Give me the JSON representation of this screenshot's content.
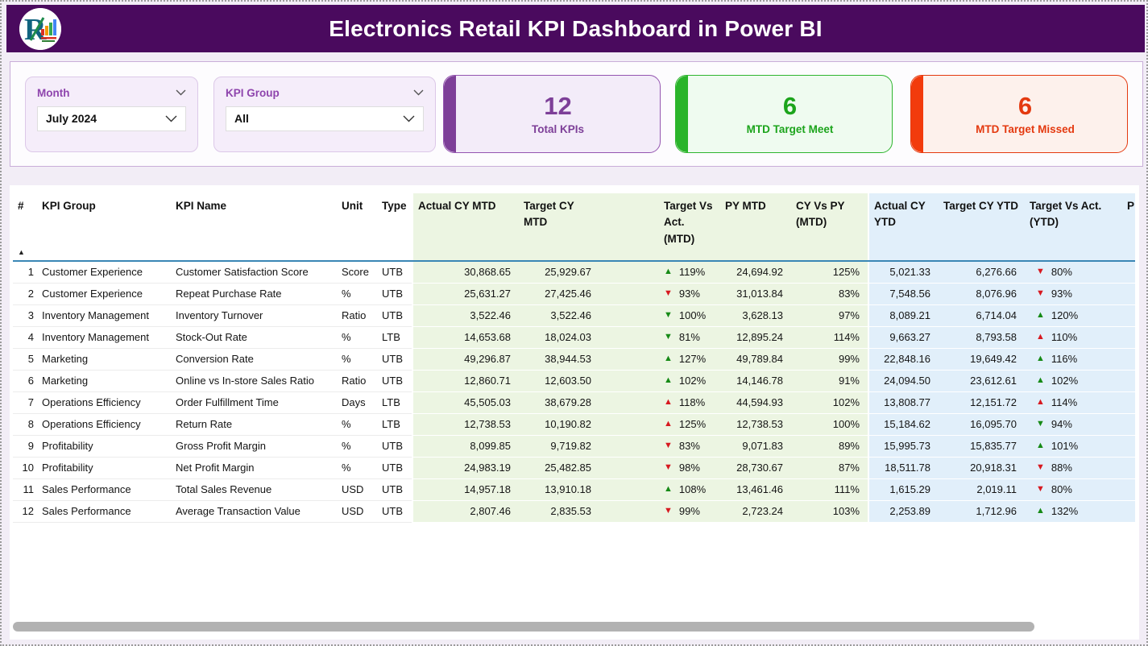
{
  "header": {
    "title": "Electronics Retail KPI Dashboard in Power BI"
  },
  "filters": {
    "month": {
      "label": "Month",
      "value": "July 2024"
    },
    "kpi_group": {
      "label": "KPI Group",
      "value": "All"
    }
  },
  "cards": {
    "total": {
      "value": "12",
      "label": "Total KPIs",
      "color": "#7d3f98"
    },
    "meet": {
      "value": "6",
      "label": "MTD Target Meet",
      "color": "#1ca41c"
    },
    "missed": {
      "value": "6",
      "label": "MTD Target Missed",
      "color": "#e4390f"
    }
  },
  "table": {
    "columns": {
      "num": "#",
      "group": "KPI Group",
      "name": "KPI Name",
      "unit": "Unit",
      "type": "Type",
      "actual_mtd": "Actual CY MTD",
      "target_mtd": "Target CY MTD",
      "tva_mtd": "Target Vs Act. (MTD)",
      "py_mtd": "PY MTD",
      "cyvspy_mtd": "CY Vs PY (MTD)",
      "actual_ytd": "Actual CY YTD",
      "target_ytd": "Target CY YTD",
      "tva_ytd": "Target Vs Act. (YTD)",
      "partial": "P"
    },
    "section_colors": {
      "mtd": "#ecf5e2",
      "ytd": "#e1effa",
      "header_underline": "#3a87b5"
    },
    "arrow_colors": {
      "green": "#168a16",
      "red": "#d71920"
    },
    "rows": [
      {
        "num": "1",
        "group": "Customer Experience",
        "name": "Customer Satisfaction Score",
        "unit": "Score",
        "type": "UTB",
        "actual_mtd": "30,868.65",
        "target_mtd": "25,929.67",
        "tva_mtd": {
          "dir": "up",
          "color": "green",
          "value": "119%"
        },
        "py_mtd": "24,694.92",
        "cyvspy_mtd": "125%",
        "actual_ytd": "5,021.33",
        "target_ytd": "6,276.66",
        "tva_ytd": {
          "dir": "down",
          "color": "red",
          "value": "80%"
        }
      },
      {
        "num": "2",
        "group": "Customer Experience",
        "name": "Repeat Purchase Rate",
        "unit": "%",
        "type": "UTB",
        "actual_mtd": "25,631.27",
        "target_mtd": "27,425.46",
        "tva_mtd": {
          "dir": "down",
          "color": "red",
          "value": "93%"
        },
        "py_mtd": "31,013.84",
        "cyvspy_mtd": "83%",
        "actual_ytd": "7,548.56",
        "target_ytd": "8,076.96",
        "tva_ytd": {
          "dir": "down",
          "color": "red",
          "value": "93%"
        }
      },
      {
        "num": "3",
        "group": "Inventory Management",
        "name": "Inventory Turnover",
        "unit": "Ratio",
        "type": "UTB",
        "actual_mtd": "3,522.46",
        "target_mtd": "3,522.46",
        "tva_mtd": {
          "dir": "down",
          "color": "green",
          "value": "100%"
        },
        "py_mtd": "3,628.13",
        "cyvspy_mtd": "97%",
        "actual_ytd": "8,089.21",
        "target_ytd": "6,714.04",
        "tva_ytd": {
          "dir": "up",
          "color": "green",
          "value": "120%"
        }
      },
      {
        "num": "4",
        "group": "Inventory Management",
        "name": "Stock-Out Rate",
        "unit": "%",
        "type": "LTB",
        "actual_mtd": "14,653.68",
        "target_mtd": "18,024.03",
        "tva_mtd": {
          "dir": "down",
          "color": "green",
          "value": "81%"
        },
        "py_mtd": "12,895.24",
        "cyvspy_mtd": "114%",
        "actual_ytd": "9,663.27",
        "target_ytd": "8,793.58",
        "tva_ytd": {
          "dir": "up",
          "color": "red",
          "value": "110%"
        }
      },
      {
        "num": "5",
        "group": "Marketing",
        "name": "Conversion Rate",
        "unit": "%",
        "type": "UTB",
        "actual_mtd": "49,296.87",
        "target_mtd": "38,944.53",
        "tva_mtd": {
          "dir": "up",
          "color": "green",
          "value": "127%"
        },
        "py_mtd": "49,789.84",
        "cyvspy_mtd": "99%",
        "actual_ytd": "22,848.16",
        "target_ytd": "19,649.42",
        "tva_ytd": {
          "dir": "up",
          "color": "green",
          "value": "116%"
        }
      },
      {
        "num": "6",
        "group": "Marketing",
        "name": "Online vs In-store Sales Ratio",
        "unit": "Ratio",
        "type": "UTB",
        "actual_mtd": "12,860.71",
        "target_mtd": "12,603.50",
        "tva_mtd": {
          "dir": "up",
          "color": "green",
          "value": "102%"
        },
        "py_mtd": "14,146.78",
        "cyvspy_mtd": "91%",
        "actual_ytd": "24,094.50",
        "target_ytd": "23,612.61",
        "tva_ytd": {
          "dir": "up",
          "color": "green",
          "value": "102%"
        }
      },
      {
        "num": "7",
        "group": "Operations Efficiency",
        "name": "Order Fulfillment Time",
        "unit": "Days",
        "type": "LTB",
        "actual_mtd": "45,505.03",
        "target_mtd": "38,679.28",
        "tva_mtd": {
          "dir": "up",
          "color": "red",
          "value": "118%"
        },
        "py_mtd": "44,594.93",
        "cyvspy_mtd": "102%",
        "actual_ytd": "13,808.77",
        "target_ytd": "12,151.72",
        "tva_ytd": {
          "dir": "up",
          "color": "red",
          "value": "114%"
        }
      },
      {
        "num": "8",
        "group": "Operations Efficiency",
        "name": "Return Rate",
        "unit": "%",
        "type": "LTB",
        "actual_mtd": "12,738.53",
        "target_mtd": "10,190.82",
        "tva_mtd": {
          "dir": "up",
          "color": "red",
          "value": "125%"
        },
        "py_mtd": "12,738.53",
        "cyvspy_mtd": "100%",
        "actual_ytd": "15,184.62",
        "target_ytd": "16,095.70",
        "tva_ytd": {
          "dir": "down",
          "color": "green",
          "value": "94%"
        }
      },
      {
        "num": "9",
        "group": "Profitability",
        "name": "Gross Profit Margin",
        "unit": "%",
        "type": "UTB",
        "actual_mtd": "8,099.85",
        "target_mtd": "9,719.82",
        "tva_mtd": {
          "dir": "down",
          "color": "red",
          "value": "83%"
        },
        "py_mtd": "9,071.83",
        "cyvspy_mtd": "89%",
        "actual_ytd": "15,995.73",
        "target_ytd": "15,835.77",
        "tva_ytd": {
          "dir": "up",
          "color": "green",
          "value": "101%"
        }
      },
      {
        "num": "10",
        "group": "Profitability",
        "name": "Net Profit Margin",
        "unit": "%",
        "type": "UTB",
        "actual_mtd": "24,983.19",
        "target_mtd": "25,482.85",
        "tva_mtd": {
          "dir": "down",
          "color": "red",
          "value": "98%"
        },
        "py_mtd": "28,730.67",
        "cyvspy_mtd": "87%",
        "actual_ytd": "18,511.78",
        "target_ytd": "20,918.31",
        "tva_ytd": {
          "dir": "down",
          "color": "red",
          "value": "88%"
        }
      },
      {
        "num": "11",
        "group": "Sales Performance",
        "name": "Total Sales Revenue",
        "unit": "USD",
        "type": "UTB",
        "actual_mtd": "14,957.18",
        "target_mtd": "13,910.18",
        "tva_mtd": {
          "dir": "up",
          "color": "green",
          "value": "108%"
        },
        "py_mtd": "13,461.46",
        "cyvspy_mtd": "111%",
        "actual_ytd": "1,615.29",
        "target_ytd": "2,019.11",
        "tva_ytd": {
          "dir": "down",
          "color": "red",
          "value": "80%"
        }
      },
      {
        "num": "12",
        "group": "Sales Performance",
        "name": "Average Transaction Value",
        "unit": "USD",
        "type": "UTB",
        "actual_mtd": "2,807.46",
        "target_mtd": "2,835.53",
        "tva_mtd": {
          "dir": "down",
          "color": "red",
          "value": "99%"
        },
        "py_mtd": "2,723.24",
        "cyvspy_mtd": "103%",
        "actual_ytd": "2,253.89",
        "target_ytd": "1,712.96",
        "tva_ytd": {
          "dir": "up",
          "color": "green",
          "value": "132%"
        }
      }
    ]
  }
}
